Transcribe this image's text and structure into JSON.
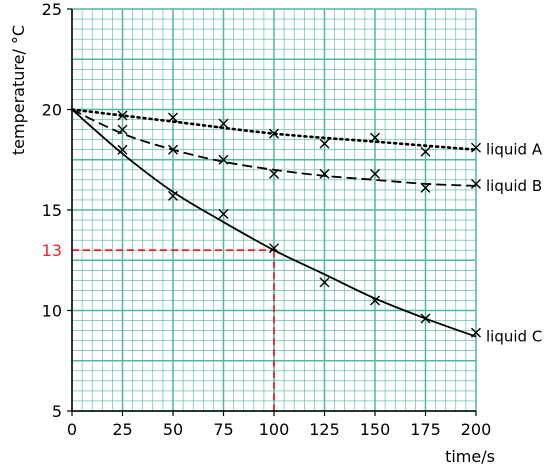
{
  "chart_data": {
    "type": "line",
    "title": "",
    "xlabel": "time/s",
    "ylabel": "temperature/ °C",
    "xlim": [
      0,
      200
    ],
    "ylim": [
      5,
      25
    ],
    "x_ticks": [
      "0",
      "25",
      "50",
      "75",
      "100",
      "125",
      "150",
      "175",
      "200"
    ],
    "y_ticks": [
      "5",
      "10",
      "15",
      "20",
      "25"
    ],
    "grid": true,
    "grid_color": "#4fb8a0",
    "series": [
      {
        "name": "liquid A",
        "style": "dotted",
        "points": [
          [
            25,
            19.7
          ],
          [
            50,
            19.6
          ],
          [
            75,
            19.3
          ],
          [
            100,
            18.8
          ],
          [
            125,
            18.3
          ],
          [
            150,
            18.6
          ],
          [
            175,
            17.9
          ],
          [
            200,
            18.1
          ]
        ],
        "curve": [
          [
            0,
            20.0
          ],
          [
            50,
            19.4
          ],
          [
            100,
            18.8
          ],
          [
            150,
            18.4
          ],
          [
            200,
            18.0
          ]
        ]
      },
      {
        "name": "liquid B",
        "style": "dashed",
        "points": [
          [
            25,
            19.0
          ],
          [
            50,
            18.0
          ],
          [
            75,
            17.5
          ],
          [
            100,
            16.8
          ],
          [
            125,
            16.8
          ],
          [
            150,
            16.8
          ],
          [
            175,
            16.1
          ],
          [
            200,
            16.3
          ]
        ],
        "curve": [
          [
            0,
            20.0
          ],
          [
            25,
            18.8
          ],
          [
            50,
            18.0
          ],
          [
            75,
            17.4
          ],
          [
            100,
            17.0
          ],
          [
            125,
            16.7
          ],
          [
            150,
            16.5
          ],
          [
            175,
            16.3
          ],
          [
            200,
            16.2
          ]
        ]
      },
      {
        "name": "liquid C",
        "style": "solid",
        "points": [
          [
            25,
            18.0
          ],
          [
            50,
            15.7
          ],
          [
            75,
            14.8
          ],
          [
            100,
            13.1
          ],
          [
            125,
            11.4
          ],
          [
            150,
            10.5
          ],
          [
            175,
            9.6
          ],
          [
            200,
            8.9
          ]
        ],
        "curve": [
          [
            0,
            20.0
          ],
          [
            25,
            17.8
          ],
          [
            50,
            15.9
          ],
          [
            75,
            14.4
          ],
          [
            100,
            13.0
          ],
          [
            125,
            11.8
          ],
          [
            150,
            10.6
          ],
          [
            175,
            9.6
          ],
          [
            200,
            8.7
          ]
        ]
      }
    ],
    "reference": {
      "x": 100,
      "y": 13,
      "label": "13",
      "color": "#e8262d"
    }
  }
}
